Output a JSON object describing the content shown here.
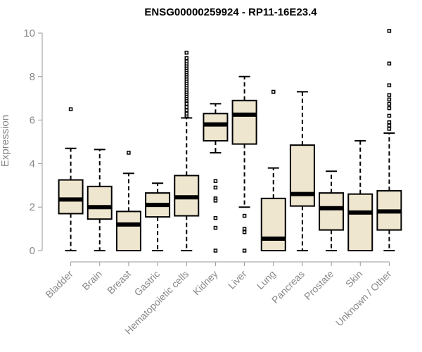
{
  "chart_data": {
    "type": "boxplot",
    "title": "ENSG00000259924 - RP11-16E23.4",
    "xlabel": "",
    "ylabel": "Expression",
    "ylim": [
      0,
      10.3
    ],
    "yticks": [
      0,
      2,
      4,
      6,
      8,
      10
    ],
    "box_color": "#efe6cf",
    "series": [
      {
        "name": "Bladder",
        "whisker_low": 0.0,
        "q1": 1.7,
        "median": 2.35,
        "q3": 3.25,
        "whisker_high": 4.7,
        "outliers": [
          6.5
        ]
      },
      {
        "name": "Brain",
        "whisker_low": 0.0,
        "q1": 1.45,
        "median": 2.0,
        "q3": 2.95,
        "whisker_high": 4.65,
        "outliers": []
      },
      {
        "name": "Breast",
        "whisker_low": 0.0,
        "q1": 0.0,
        "median": 1.2,
        "q3": 1.8,
        "whisker_high": 3.55,
        "outliers": [
          4.5
        ]
      },
      {
        "name": "Gastric",
        "whisker_low": 0.0,
        "q1": 1.55,
        "median": 2.1,
        "q3": 2.65,
        "whisker_high": 3.1,
        "outliers": []
      },
      {
        "name": "Hematopoietic cells",
        "whisker_low": 0.0,
        "q1": 1.6,
        "median": 2.45,
        "q3": 3.45,
        "whisker_high": 6.1,
        "outliers": [
          6.2,
          6.3,
          6.45,
          6.6,
          6.75,
          6.9,
          7.0,
          7.1,
          7.2,
          7.3,
          7.4,
          7.5,
          7.6,
          7.7,
          7.8,
          7.9,
          8.0,
          8.1,
          8.2,
          8.3,
          8.4,
          8.5,
          8.6,
          8.7,
          8.85,
          9.1
        ]
      },
      {
        "name": "Kidney",
        "whisker_low": 4.5,
        "q1": 5.05,
        "median": 5.8,
        "q3": 6.3,
        "whisker_high": 6.75,
        "outliers": [
          3.2,
          2.9,
          2.4,
          2.3,
          1.5,
          1.05,
          0.0
        ]
      },
      {
        "name": "Liver",
        "whisker_low": 2.0,
        "q1": 4.9,
        "median": 6.25,
        "q3": 6.9,
        "whisker_high": 8.0,
        "outliers": [
          1.6,
          1.0,
          0.85,
          0.0
        ]
      },
      {
        "name": "Lung",
        "whisker_low": 0.0,
        "q1": 0.0,
        "median": 0.55,
        "q3": 2.4,
        "whisker_high": 3.8,
        "outliers": [
          7.3
        ]
      },
      {
        "name": "Pancreas",
        "whisker_low": 0.0,
        "q1": 2.05,
        "median": 2.6,
        "q3": 4.85,
        "whisker_high": 7.3,
        "outliers": []
      },
      {
        "name": "Prostate",
        "whisker_low": 0.0,
        "q1": 0.95,
        "median": 1.95,
        "q3": 2.65,
        "whisker_high": 3.65,
        "outliers": []
      },
      {
        "name": "Skin",
        "whisker_low": 0.0,
        "q1": 0.0,
        "median": 1.75,
        "q3": 2.6,
        "whisker_high": 5.05,
        "outliers": []
      },
      {
        "name": "Unknown / Other",
        "whisker_low": 0.0,
        "q1": 0.95,
        "median": 1.8,
        "q3": 2.75,
        "whisker_high": 5.4,
        "outliers": [
          5.6,
          5.75,
          5.9,
          6.2,
          6.55,
          6.75,
          6.95,
          7.15,
          7.6,
          8.6,
          10.1
        ]
      }
    ]
  }
}
